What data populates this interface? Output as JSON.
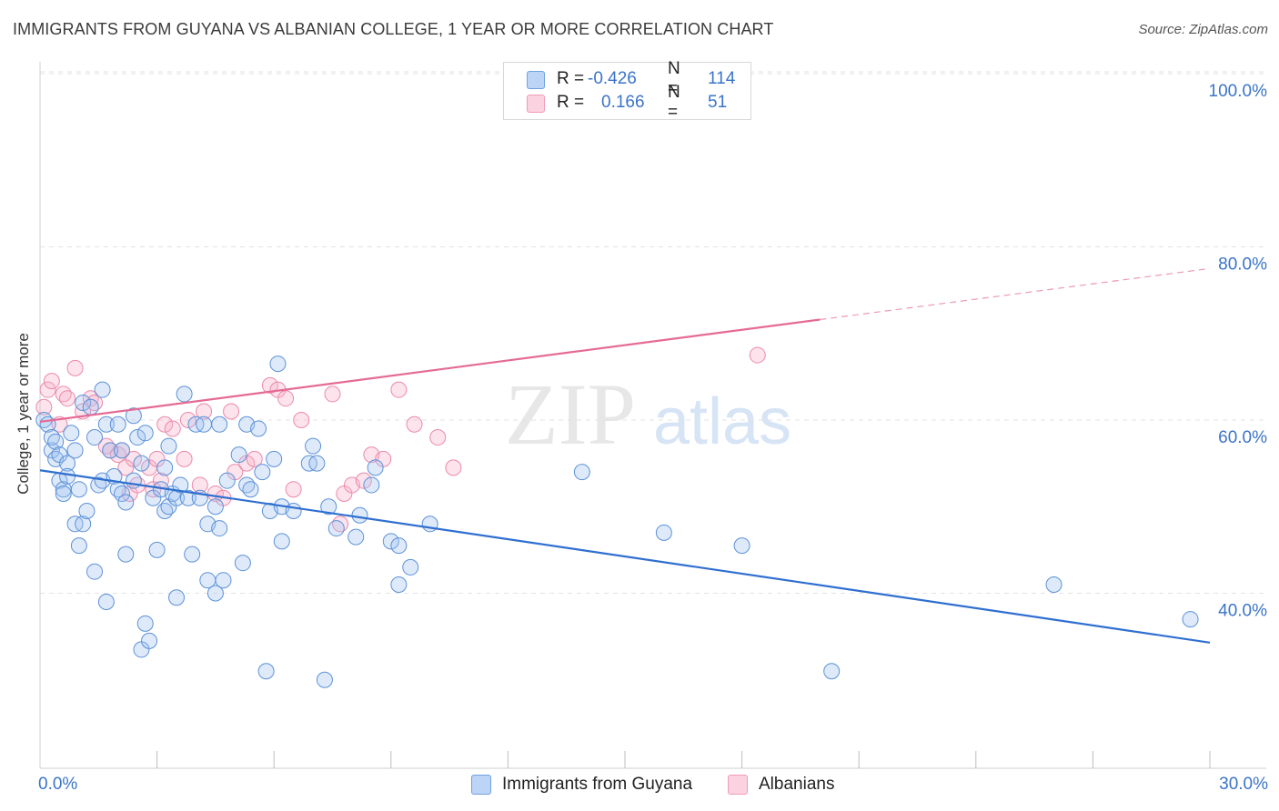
{
  "title": "IMMIGRANTS FROM GUYANA VS ALBANIAN COLLEGE, 1 YEAR OR MORE CORRELATION CHART",
  "source": "Source: ZipAtlas.com",
  "watermark": {
    "zip": "ZIP",
    "atlas": "atlas"
  },
  "legend_top": {
    "rows": [
      {
        "r_label": "R =",
        "r_value": "-0.426",
        "n_label": "N =",
        "n_value": "114",
        "color": "#6fa1e0"
      },
      {
        "r_label": "R =",
        "r_value": "0.166",
        "n_label": "N =",
        "n_value": "51",
        "color": "#f29bb6"
      }
    ]
  },
  "legend_bottom": [
    {
      "label": "Immigrants from Guyana",
      "color": "#6fa1e0"
    },
    {
      "label": "Albanians",
      "color": "#f29bb6"
    }
  ],
  "colors": {
    "blue": "#3b74c9",
    "blue_fill": "#a8c6ef",
    "pink": "#e8709a",
    "pink_fill": "#f6bcd0",
    "grid": "#dddddd"
  },
  "chart_data": {
    "type": "scatter",
    "title": "IMMIGRANTS FROM GUYANA VS ALBANIAN COLLEGE, 1 YEAR OR MORE CORRELATION CHART",
    "xlabel": "",
    "ylabel": "College, 1 year or more",
    "xlim": [
      0,
      30
    ],
    "ylim": [
      20,
      102
    ],
    "x_tick_labels": [
      "0.0%",
      "30.0%"
    ],
    "y_ticks": [
      40,
      60,
      80,
      100
    ],
    "y_tick_labels": [
      "40.0%",
      "60.0%",
      "80.0%",
      "100.0%"
    ],
    "grid": true,
    "legend_position": "top-center",
    "series": [
      {
        "name": "Immigrants from Guyana",
        "color": "#6fa1e0",
        "trend": {
          "x": [
            0,
            30
          ],
          "y": [
            54.2,
            34.3
          ]
        },
        "points": [
          [
            0.1,
            60.0
          ],
          [
            0.2,
            59.5
          ],
          [
            0.3,
            56.5
          ],
          [
            0.3,
            58.0
          ],
          [
            0.4,
            57.5
          ],
          [
            0.4,
            55.5
          ],
          [
            0.5,
            56.0
          ],
          [
            0.5,
            53.0
          ],
          [
            0.6,
            52.0
          ],
          [
            0.6,
            51.5
          ],
          [
            0.7,
            55.0
          ],
          [
            0.7,
            53.5
          ],
          [
            0.8,
            58.5
          ],
          [
            0.9,
            56.5
          ],
          [
            0.9,
            48.0
          ],
          [
            1.0,
            52.0
          ],
          [
            1.0,
            45.5
          ],
          [
            1.1,
            62.0
          ],
          [
            1.1,
            48.0
          ],
          [
            1.2,
            49.5
          ],
          [
            1.3,
            61.5
          ],
          [
            1.4,
            58.0
          ],
          [
            1.4,
            42.5
          ],
          [
            1.5,
            52.5
          ],
          [
            1.6,
            53.0
          ],
          [
            1.6,
            63.5
          ],
          [
            1.7,
            59.5
          ],
          [
            1.7,
            39.0
          ],
          [
            1.8,
            56.5
          ],
          [
            1.9,
            53.5
          ],
          [
            2.0,
            59.5
          ],
          [
            2.0,
            52.0
          ],
          [
            2.1,
            51.5
          ],
          [
            2.1,
            56.5
          ],
          [
            2.2,
            50.5
          ],
          [
            2.2,
            44.5
          ],
          [
            2.4,
            53.0
          ],
          [
            2.4,
            60.5
          ],
          [
            2.5,
            58.0
          ],
          [
            2.6,
            33.5
          ],
          [
            2.6,
            55.0
          ],
          [
            2.7,
            58.5
          ],
          [
            2.7,
            36.5
          ],
          [
            2.8,
            34.5
          ],
          [
            2.9,
            51.0
          ],
          [
            3.0,
            45.0
          ],
          [
            3.1,
            52.0
          ],
          [
            3.2,
            49.5
          ],
          [
            3.2,
            54.5
          ],
          [
            3.3,
            50.0
          ],
          [
            3.3,
            57.0
          ],
          [
            3.4,
            51.5
          ],
          [
            3.5,
            39.5
          ],
          [
            3.5,
            51.0
          ],
          [
            3.6,
            52.5
          ],
          [
            3.7,
            63.0
          ],
          [
            3.8,
            51.0
          ],
          [
            3.9,
            44.5
          ],
          [
            4.0,
            59.5
          ],
          [
            4.1,
            51.0
          ],
          [
            4.2,
            59.5
          ],
          [
            4.3,
            48.0
          ],
          [
            4.3,
            41.5
          ],
          [
            4.5,
            40.0
          ],
          [
            4.5,
            50.0
          ],
          [
            4.6,
            47.5
          ],
          [
            4.6,
            59.5
          ],
          [
            4.7,
            41.5
          ],
          [
            4.8,
            53.0
          ],
          [
            5.1,
            56.0
          ],
          [
            5.2,
            43.5
          ],
          [
            5.3,
            52.5
          ],
          [
            5.3,
            59.5
          ],
          [
            5.4,
            52.0
          ],
          [
            5.6,
            59.0
          ],
          [
            5.7,
            54.0
          ],
          [
            5.8,
            31.0
          ],
          [
            5.9,
            49.5
          ],
          [
            6.0,
            55.5
          ],
          [
            6.1,
            66.5
          ],
          [
            6.2,
            50.0
          ],
          [
            6.2,
            46.0
          ],
          [
            6.5,
            49.5
          ],
          [
            6.9,
            55.0
          ],
          [
            7.0,
            57.0
          ],
          [
            7.1,
            55.0
          ],
          [
            7.3,
            30.0
          ],
          [
            7.4,
            50.0
          ],
          [
            7.6,
            47.5
          ],
          [
            8.1,
            46.5
          ],
          [
            8.2,
            49.0
          ],
          [
            8.5,
            52.5
          ],
          [
            8.6,
            54.5
          ],
          [
            9.0,
            46.0
          ],
          [
            9.2,
            45.5
          ],
          [
            9.2,
            41.0
          ],
          [
            9.5,
            43.0
          ],
          [
            10.0,
            48.0
          ],
          [
            13.9,
            54.0
          ],
          [
            16.0,
            47.0
          ],
          [
            18.0,
            45.5
          ],
          [
            20.3,
            31.0
          ],
          [
            26.0,
            41.0
          ],
          [
            29.5,
            37.0
          ]
        ]
      },
      {
        "name": "Albanians",
        "color": "#f29bb6",
        "trend": {
          "x": [
            0,
            30
          ],
          "y": [
            59.8,
            77.5
          ]
        },
        "points": [
          [
            0.1,
            61.5
          ],
          [
            0.2,
            63.5
          ],
          [
            0.3,
            64.5
          ],
          [
            0.5,
            59.5
          ],
          [
            0.6,
            63.0
          ],
          [
            0.7,
            62.5
          ],
          [
            0.9,
            66.0
          ],
          [
            1.1,
            61.0
          ],
          [
            1.3,
            62.5
          ],
          [
            1.4,
            62.0
          ],
          [
            1.7,
            57.0
          ],
          [
            1.8,
            56.5
          ],
          [
            2.0,
            56.0
          ],
          [
            2.1,
            56.5
          ],
          [
            2.2,
            54.5
          ],
          [
            2.3,
            51.5
          ],
          [
            2.4,
            55.5
          ],
          [
            2.5,
            52.5
          ],
          [
            2.8,
            54.5
          ],
          [
            2.9,
            52.0
          ],
          [
            3.0,
            55.5
          ],
          [
            3.1,
            53.0
          ],
          [
            3.2,
            59.5
          ],
          [
            3.4,
            59.0
          ],
          [
            3.7,
            55.5
          ],
          [
            3.8,
            60.0
          ],
          [
            4.1,
            52.5
          ],
          [
            4.2,
            61.0
          ],
          [
            4.5,
            51.5
          ],
          [
            4.7,
            51.0
          ],
          [
            4.9,
            61.0
          ],
          [
            5.0,
            54.0
          ],
          [
            5.3,
            55.0
          ],
          [
            5.5,
            55.5
          ],
          [
            5.9,
            64.0
          ],
          [
            6.1,
            63.5
          ],
          [
            6.3,
            62.5
          ],
          [
            6.5,
            52.0
          ],
          [
            6.7,
            60.0
          ],
          [
            7.5,
            63.0
          ],
          [
            7.7,
            48.0
          ],
          [
            7.8,
            51.5
          ],
          [
            8.0,
            52.5
          ],
          [
            8.3,
            53.0
          ],
          [
            8.5,
            56.0
          ],
          [
            8.8,
            55.5
          ],
          [
            9.2,
            63.5
          ],
          [
            9.6,
            59.5
          ],
          [
            10.2,
            58.0
          ],
          [
            10.6,
            54.5
          ],
          [
            18.4,
            67.5
          ]
        ]
      }
    ]
  }
}
